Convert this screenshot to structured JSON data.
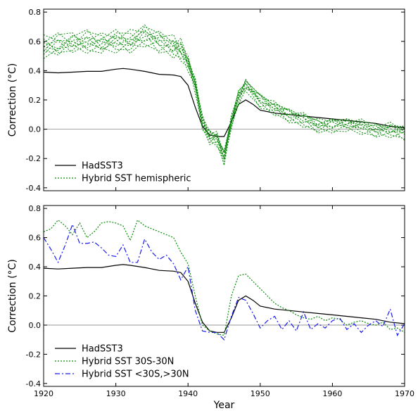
{
  "chart_data": [
    {
      "type": "line",
      "title": "",
      "xlabel": "",
      "ylabel": "Correction (°C)",
      "xlim": [
        1920,
        1970
      ],
      "ylim": [
        -0.42,
        0.82
      ],
      "yticks": [
        "-0.4",
        "-0.2",
        "0.0",
        "0.2",
        "0.4",
        "0.6",
        "0.8"
      ],
      "xticks": [],
      "legend_position": "lower-left",
      "grid": false,
      "series": [
        {
          "name": "HadSST3",
          "color": "#000000",
          "style": "solid",
          "x": [
            1920,
            1922,
            1924,
            1926,
            1928,
            1930,
            1931,
            1932,
            1934,
            1936,
            1938,
            1939,
            1940,
            1941,
            1942,
            1943,
            1944,
            1945,
            1946,
            1947,
            1948,
            1949,
            1950,
            1952,
            1954,
            1956,
            1958,
            1960,
            1962,
            1964,
            1966,
            1968,
            1970
          ],
          "y": [
            0.39,
            0.385,
            0.39,
            0.395,
            0.395,
            0.41,
            0.415,
            0.41,
            0.395,
            0.375,
            0.37,
            0.36,
            0.3,
            0.15,
            0.02,
            -0.04,
            -0.05,
            -0.05,
            0.05,
            0.17,
            0.2,
            0.17,
            0.13,
            0.11,
            0.1,
            0.09,
            0.08,
            0.07,
            0.06,
            0.05,
            0.04,
            0.02,
            0.01
          ]
        },
        {
          "name": "Hybrid SST hemispheric",
          "color": "#0a8a0a",
          "style": "dotted",
          "members": 10,
          "x": [
            1920,
            1922,
            1924,
            1926,
            1928,
            1930,
            1932,
            1934,
            1936,
            1938,
            1939,
            1940,
            1941,
            1942,
            1943,
            1944,
            1945,
            1946,
            1947,
            1948,
            1950,
            1952,
            1954,
            1956,
            1958,
            1960,
            1962,
            1964,
            1966,
            1968,
            1970
          ],
          "y": [
            0.56,
            0.58,
            0.6,
            0.6,
            0.58,
            0.6,
            0.6,
            0.64,
            0.6,
            0.57,
            0.55,
            0.45,
            0.3,
            0.05,
            -0.05,
            -0.06,
            -0.19,
            0.06,
            0.22,
            0.3,
            0.2,
            0.15,
            0.1,
            0.07,
            0.03,
            0.03,
            0.03,
            0.02,
            0.0,
            0.0,
            -0.02
          ]
        }
      ]
    },
    {
      "type": "line",
      "title": "",
      "xlabel": "Year",
      "ylabel": "Correction (°C)",
      "xlim": [
        1920,
        1970
      ],
      "ylim": [
        -0.42,
        0.82
      ],
      "yticks": [
        "-0.4",
        "-0.2",
        "0.0",
        "0.2",
        "0.4",
        "0.6",
        "0.8"
      ],
      "xticks": [
        "1920",
        "1930",
        "1940",
        "1950",
        "1960",
        "1970"
      ],
      "legend_position": "lower-left",
      "grid": false,
      "series": [
        {
          "name": "HadSST3",
          "color": "#000000",
          "style": "solid",
          "x": [
            1920,
            1922,
            1924,
            1926,
            1928,
            1930,
            1931,
            1932,
            1934,
            1936,
            1938,
            1939,
            1940,
            1941,
            1942,
            1943,
            1944,
            1945,
            1946,
            1947,
            1948,
            1949,
            1950,
            1952,
            1954,
            1956,
            1958,
            1960,
            1962,
            1964,
            1966,
            1968,
            1970
          ],
          "y": [
            0.39,
            0.385,
            0.39,
            0.395,
            0.395,
            0.41,
            0.415,
            0.41,
            0.395,
            0.375,
            0.37,
            0.36,
            0.3,
            0.15,
            0.02,
            -0.04,
            -0.05,
            -0.05,
            0.05,
            0.17,
            0.2,
            0.17,
            0.13,
            0.11,
            0.1,
            0.09,
            0.08,
            0.07,
            0.06,
            0.05,
            0.04,
            0.02,
            0.01
          ]
        },
        {
          "name": "Hybrid SST 30S-30N",
          "color": "#0a8a0a",
          "style": "dotted",
          "x": [
            1920,
            1921,
            1922,
            1923,
            1924,
            1925,
            1926,
            1927,
            1928,
            1929,
            1930,
            1931,
            1932,
            1933,
            1934,
            1935,
            1936,
            1937,
            1938,
            1939,
            1940,
            1941,
            1942,
            1943,
            1944,
            1945,
            1946,
            1947,
            1948,
            1949,
            1950,
            1951,
            1952,
            1953,
            1954,
            1955,
            1956,
            1957,
            1958,
            1959,
            1960,
            1961,
            1962,
            1963,
            1964,
            1965,
            1966,
            1967,
            1968,
            1969,
            1970
          ],
          "y": [
            0.64,
            0.66,
            0.72,
            0.68,
            0.62,
            0.7,
            0.6,
            0.64,
            0.7,
            0.71,
            0.7,
            0.68,
            0.58,
            0.72,
            0.68,
            0.66,
            0.64,
            0.62,
            0.6,
            0.5,
            0.42,
            0.2,
            0.0,
            -0.04,
            -0.06,
            -0.07,
            0.2,
            0.34,
            0.35,
            0.3,
            0.25,
            0.2,
            0.15,
            0.12,
            0.1,
            0.07,
            0.05,
            0.04,
            0.06,
            0.03,
            0.05,
            0.04,
            0.0,
            0.02,
            0.03,
            0.01,
            0.0,
            0.02,
            -0.03,
            -0.02,
            -0.05
          ]
        },
        {
          "name": "Hybrid SST <30S,>30N",
          "color": "#1a1aee",
          "style": "dashdot",
          "x": [
            1920,
            1921,
            1922,
            1923,
            1924,
            1925,
            1926,
            1927,
            1928,
            1929,
            1930,
            1931,
            1932,
            1933,
            1934,
            1935,
            1936,
            1937,
            1938,
            1939,
            1940,
            1941,
            1942,
            1943,
            1944,
            1945,
            1946,
            1947,
            1948,
            1949,
            1950,
            1951,
            1952,
            1953,
            1954,
            1955,
            1956,
            1957,
            1958,
            1959,
            1960,
            1961,
            1962,
            1963,
            1964,
            1965,
            1966,
            1967,
            1968,
            1969,
            1970
          ],
          "y": [
            0.6,
            0.52,
            0.43,
            0.55,
            0.69,
            0.56,
            0.56,
            0.57,
            0.53,
            0.48,
            0.47,
            0.55,
            0.43,
            0.43,
            0.59,
            0.5,
            0.45,
            0.48,
            0.42,
            0.31,
            0.4,
            0.1,
            -0.04,
            -0.05,
            -0.05,
            -0.1,
            0.06,
            0.19,
            0.17,
            0.08,
            -0.02,
            0.03,
            0.06,
            -0.03,
            0.03,
            -0.04,
            0.09,
            -0.03,
            0.01,
            -0.02,
            0.03,
            0.05,
            -0.03,
            0.01,
            -0.05,
            0.0,
            0.03,
            -0.01,
            0.11,
            -0.07,
            0.01
          ]
        }
      ]
    }
  ]
}
